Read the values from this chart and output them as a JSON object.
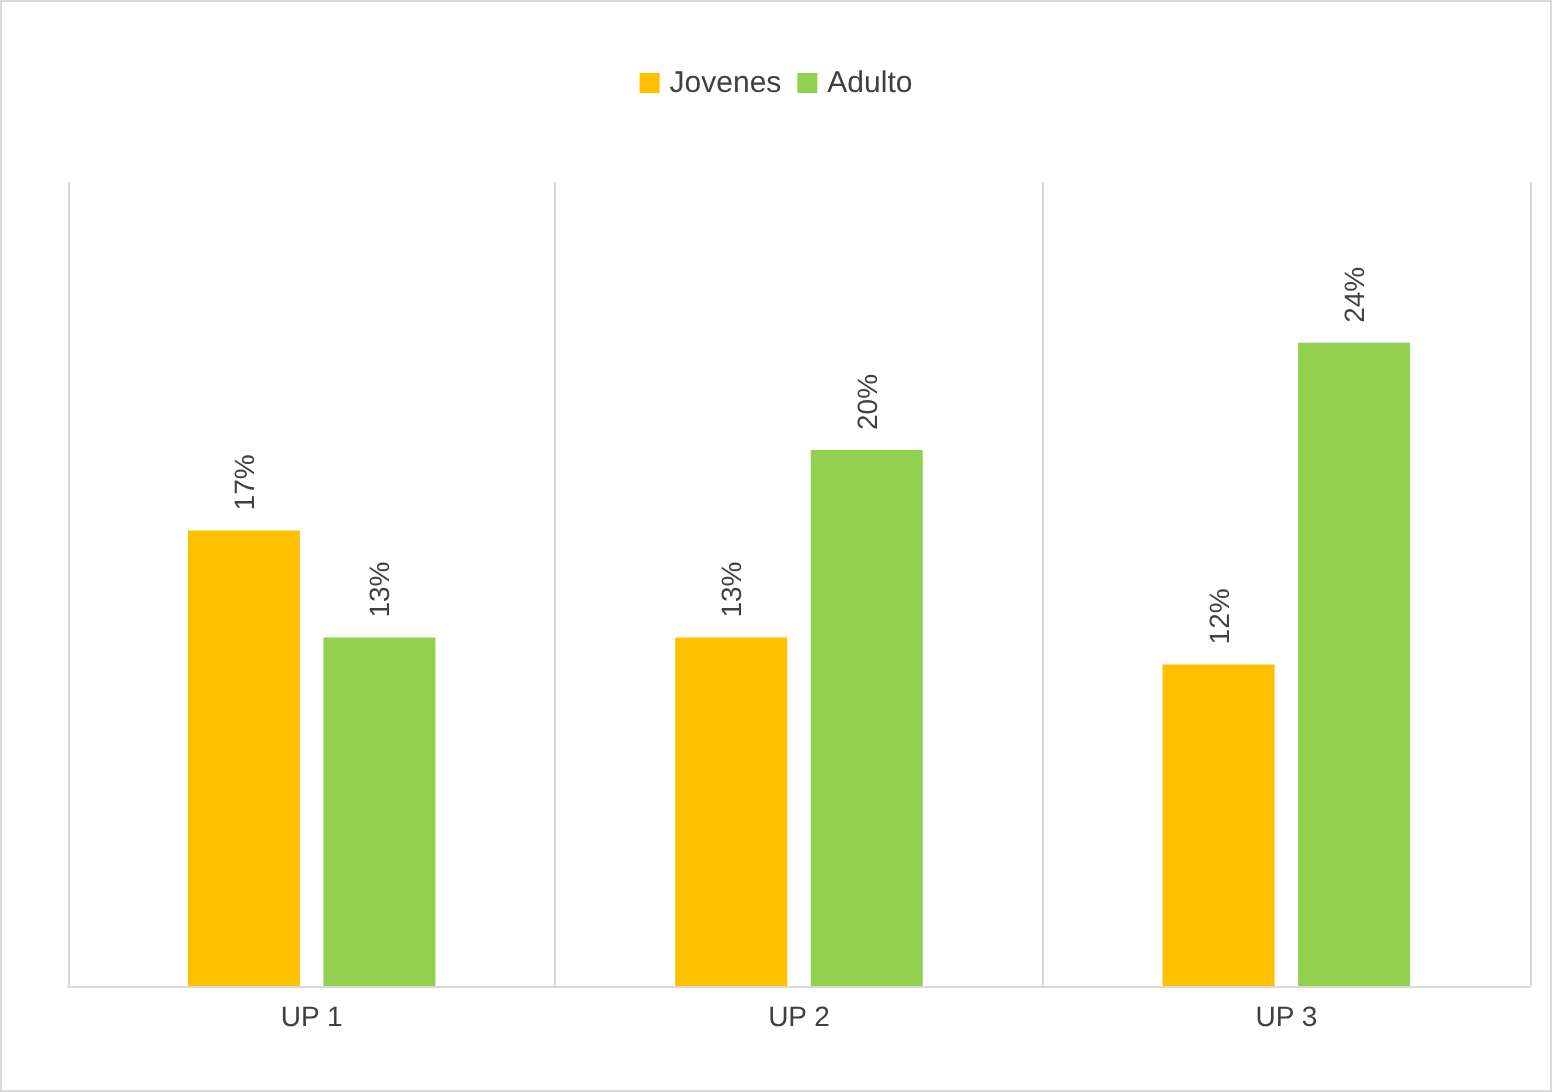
{
  "chart_data": {
    "type": "bar",
    "categories": [
      "UP 1",
      "UP 2",
      "UP 3"
    ],
    "series": [
      {
        "name": "Jovenes",
        "color": "#ffc000",
        "values": [
          17,
          13,
          12
        ],
        "value_labels": [
          "17%",
          "13%",
          "12%"
        ]
      },
      {
        "name": "Adulto",
        "color": "#92d050",
        "values": [
          13,
          20,
          24
        ],
        "value_labels": [
          "13%",
          "20%",
          "24%"
        ]
      }
    ],
    "ylim": [
      0,
      30
    ],
    "tick_labels": "x",
    "grid": "x",
    "legend": "top"
  }
}
